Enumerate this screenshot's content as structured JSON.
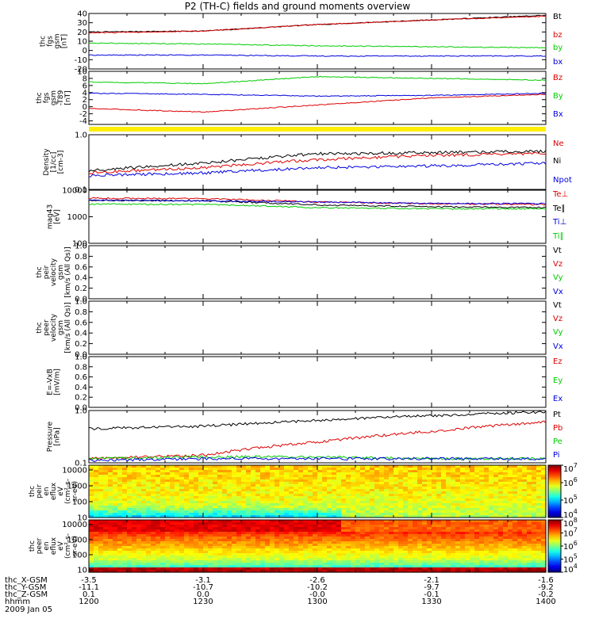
{
  "page": {
    "title": "P2 (TH-C) fields and ground moments overview"
  },
  "colors": {
    "black": "#000000",
    "red": "#dd0000",
    "green": "#00cc00",
    "blue": "#0000dd",
    "yellow": "#ffee00"
  },
  "chart_data": [
    {
      "type": "line",
      "panel": "fgs",
      "ylabel": [
        "thc",
        "fgs",
        "gsm",
        "[nT]"
      ],
      "ylim": [
        -20,
        40
      ],
      "yticks": [
        "-20",
        "-10",
        "0",
        "10",
        "20",
        "30",
        "40"
      ],
      "legend": [
        "Bt",
        "bz",
        "by",
        "bx"
      ],
      "series": [
        {
          "name": "Bt",
          "color": "black",
          "x": [
            1200,
            1230,
            1300,
            1330,
            1400
          ],
          "values": [
            20,
            21,
            28,
            33,
            38
          ]
        },
        {
          "name": "bz",
          "color": "red",
          "x": [
            1200,
            1230,
            1300,
            1330,
            1400
          ],
          "values": [
            19,
            21,
            28,
            33,
            37
          ]
        },
        {
          "name": "by",
          "color": "green",
          "x": [
            1200,
            1230,
            1300,
            1330,
            1400
          ],
          "values": [
            8,
            7,
            5,
            4,
            3
          ]
        },
        {
          "name": "bx",
          "color": "blue",
          "x": [
            1200,
            1230,
            1300,
            1330,
            1400
          ],
          "values": [
            -5,
            -5,
            -6,
            -6,
            -6
          ]
        }
      ]
    },
    {
      "type": "line",
      "panel": "fgs-t89",
      "ylabel": [
        "thc",
        "fgs",
        "gsm",
        "-T89",
        "[nT]"
      ],
      "ylim": [
        -5,
        10
      ],
      "yticks": [
        "-4",
        "-2",
        "0",
        "2",
        "4",
        "6",
        "8",
        "10"
      ],
      "legend": [
        "Bz",
        "By",
        "Bx"
      ],
      "series": [
        {
          "name": "Bz",
          "color": "red",
          "x": [
            1200,
            1230,
            1300,
            1330,
            1400
          ],
          "values": [
            -0.5,
            -1.5,
            0.5,
            2.5,
            3.5
          ]
        },
        {
          "name": "By",
          "color": "green",
          "x": [
            1200,
            1230,
            1300,
            1330,
            1400
          ],
          "values": [
            7,
            6.5,
            8.5,
            8,
            7.5
          ]
        },
        {
          "name": "Bx",
          "color": "blue",
          "x": [
            1200,
            1230,
            1300,
            1330,
            1400
          ],
          "values": [
            3.8,
            3.5,
            3,
            3.2,
            3.8
          ]
        }
      ]
    },
    {
      "type": "line",
      "panel": "density",
      "yscale": "log",
      "ylabel": [
        "Density",
        "[1/cc]",
        "[cm-3]"
      ],
      "ylim": [
        0.1,
        1.0
      ],
      "yticks": [
        "1.0",
        "0.1"
      ],
      "legend": [
        "Ne",
        "Ni",
        "Npot"
      ],
      "series": [
        {
          "name": "Ne",
          "color": "red",
          "x": [
            1200,
            1230,
            1300,
            1330,
            1400
          ],
          "values": [
            0.2,
            0.25,
            0.35,
            0.42,
            0.45
          ]
        },
        {
          "name": "Ni",
          "color": "black",
          "x": [
            1200,
            1230,
            1300,
            1330,
            1400
          ],
          "values": [
            0.22,
            0.3,
            0.45,
            0.47,
            0.5
          ]
        },
        {
          "name": "Npot",
          "color": "blue",
          "x": [
            1200,
            1230,
            1300,
            1330,
            1400
          ],
          "values": [
            0.18,
            0.2,
            0.25,
            0.27,
            0.3
          ]
        }
      ]
    },
    {
      "type": "line",
      "panel": "temperature",
      "yscale": "log",
      "ylabel": [
        "mag43",
        "[eV]"
      ],
      "ylim": [
        100,
        10000
      ],
      "yticks": [
        "10000",
        "1000",
        "100"
      ],
      "legend": [
        "Te⊥",
        "Te∥",
        "Ti⊥",
        "Ti∥"
      ],
      "series": [
        {
          "name": "Te⊥",
          "color": "red",
          "x": [
            1200,
            1230,
            1300,
            1330,
            1400
          ],
          "values": [
            5000,
            4800,
            3600,
            3100,
            2900
          ]
        },
        {
          "name": "Te∥",
          "color": "black",
          "x": [
            1200,
            1230,
            1300,
            1330,
            1400
          ],
          "values": [
            4200,
            4000,
            2800,
            2400,
            2200
          ]
        },
        {
          "name": "Ti⊥",
          "color": "blue",
          "x": [
            1200,
            1230,
            1300,
            1330,
            1400
          ],
          "values": [
            4200,
            4000,
            3600,
            3200,
            3100
          ]
        },
        {
          "name": "Ti∥",
          "color": "green",
          "x": [
            1200,
            1230,
            1300,
            1330,
            1400
          ],
          "values": [
            3000,
            2900,
            2200,
            2000,
            2000
          ]
        }
      ]
    },
    {
      "type": "line",
      "panel": "peir-velocity",
      "ylabel": [
        "thc",
        "peir",
        "velocity",
        "gsm",
        "[km/s (All Qs)]"
      ],
      "ylim": [
        0,
        1
      ],
      "yticks": [
        "0.0",
        "0.2",
        "0.4",
        "0.6",
        "0.8",
        "1.0"
      ],
      "legend": [
        "Vt",
        "Vz",
        "Vy",
        "Vx"
      ],
      "series": []
    },
    {
      "type": "line",
      "panel": "peer-velocity",
      "ylabel": [
        "thc",
        "peer",
        "velocity",
        "gsm",
        "[km/s (All Qs)]"
      ],
      "ylim": [
        0,
        1
      ],
      "yticks": [
        "0.0",
        "0.2",
        "0.4",
        "0.6",
        "0.8",
        "1.0"
      ],
      "legend": [
        "Vt",
        "Vz",
        "Vy",
        "Vx"
      ],
      "series": []
    },
    {
      "type": "line",
      "panel": "efield",
      "ylabel": [
        "E=-VxB",
        "[mV/m]"
      ],
      "ylim": [
        0,
        1
      ],
      "yticks": [
        "0.0",
        "0.2",
        "0.4",
        "0.6",
        "0.8",
        "1.0"
      ],
      "legend": [
        "Ez",
        "Ey",
        "Ex"
      ],
      "series": []
    },
    {
      "type": "line",
      "panel": "pressure",
      "yscale": "log",
      "ylabel": [
        "Pressure",
        "[nPa]"
      ],
      "ylim": [
        0.1,
        1.0
      ],
      "yticks": [
        "1.0",
        "0.1"
      ],
      "legend": [
        "Pt",
        "Pb",
        "Pe",
        "Pi"
      ],
      "series": [
        {
          "name": "Pt",
          "color": "black",
          "x": [
            1200,
            1230,
            1300,
            1330,
            1400
          ],
          "values": [
            0.45,
            0.5,
            0.65,
            0.8,
            0.95
          ]
        },
        {
          "name": "Pb",
          "color": "red",
          "x": [
            1200,
            1230,
            1300,
            1330,
            1400
          ],
          "values": [
            0.12,
            0.14,
            0.25,
            0.4,
            0.6
          ]
        },
        {
          "name": "Pe",
          "color": "green",
          "x": [
            1200,
            1230,
            1300,
            1330,
            1400
          ],
          "values": [
            0.12,
            0.13,
            0.13,
            0.12,
            0.12
          ]
        },
        {
          "name": "Pi",
          "color": "blue",
          "x": [
            1200,
            1230,
            1300,
            1330,
            1400
          ],
          "values": [
            0.11,
            0.12,
            0.12,
            0.12,
            0.12
          ]
        }
      ]
    },
    {
      "type": "heatmap",
      "panel": "peir-spectrogram",
      "ylabel": [
        "thc",
        "peir",
        "en",
        "eflux",
        "eV",
        "(cm²-s-",
        "sr-eV)"
      ],
      "ylim": [
        10,
        20000
      ],
      "yticks": [
        "10000",
        "1000",
        "100",
        "10"
      ],
      "colorbar": {
        "range": [
          10000,
          10000000
        ],
        "tick_bases": [
          "10",
          "10",
          "10",
          "10"
        ],
        "tick_exps": [
          "7",
          "6",
          "5",
          "4"
        ]
      }
    },
    {
      "type": "heatmap",
      "panel": "peer-spectrogram",
      "ylabel": [
        "thc",
        "peer",
        "en",
        "eflux",
        "eV",
        "(cm²-s-",
        "sr-eV)"
      ],
      "ylim": [
        7,
        20000
      ],
      "yticks": [
        "10000",
        "1000",
        "100",
        "10"
      ],
      "colorbar": {
        "range": [
          10000,
          100000000
        ],
        "tick_bases": [
          "10",
          "10",
          "10",
          "10",
          "10"
        ],
        "tick_exps": [
          "8",
          "7",
          "6",
          "5",
          "4"
        ]
      }
    }
  ],
  "footer": {
    "labels": [
      "thc_X-GSM",
      "thc_Y-GSM",
      "thc_Z-GSM",
      "hhmm",
      "2009 Jan 05"
    ],
    "columns": [
      {
        "x": "-3.5",
        "y": "-11.1",
        "z": "0.1",
        "time": "1200"
      },
      {
        "x": "-3.1",
        "y": "-10.7",
        "z": "0.0",
        "time": "1230"
      },
      {
        "x": "-2.6",
        "y": "-10.2",
        "z": "-0.0",
        "time": "1300"
      },
      {
        "x": "-2.1",
        "y": "-9.7",
        "z": "-0.1",
        "time": "1330"
      },
      {
        "x": "-1.6",
        "y": "-9.2",
        "z": "-0.2",
        "time": "1400"
      }
    ]
  }
}
